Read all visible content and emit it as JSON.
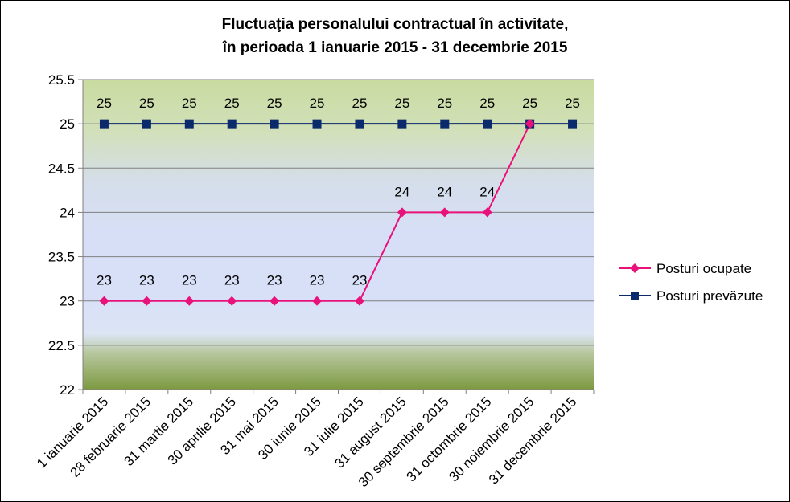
{
  "chart_data": {
    "type": "line",
    "title_lines": [
      "Fluctuaţia personalului contractual în activitate,",
      "în perioada 1 ianuarie 2015 - 31 decembrie 2015"
    ],
    "categories": [
      "1 ianuarie 2015",
      "28 februarie 2015",
      "31 martie 2015",
      "30 aprilie 2015",
      "31 mai 2015",
      "30 iunie 2015",
      "31 iulie 2015",
      "31 august 2015",
      "30 septembrie 2015",
      "31 octombrie 2015",
      "30 noiembrie 2015",
      "31 decembrie 2015"
    ],
    "ylim": [
      22,
      25.5
    ],
    "yticks": [
      "22",
      "22.5",
      "23",
      "23.5",
      "24",
      "24.5",
      "25",
      "25.5"
    ],
    "series": [
      {
        "name": "Posturi ocupate",
        "color": "#e8127a",
        "marker": "diamond",
        "values": [
          23,
          23,
          23,
          23,
          23,
          23,
          23,
          24,
          24,
          24,
          25,
          null
        ],
        "labels": [
          "23",
          "23",
          "23",
          "23",
          "23",
          "23",
          "23",
          "24",
          "24",
          "24",
          "",
          ""
        ]
      },
      {
        "name": "Posturi prevăzute",
        "color": "#0a2a6b",
        "marker": "square",
        "values": [
          25,
          25,
          25,
          25,
          25,
          25,
          25,
          25,
          25,
          25,
          25,
          25
        ],
        "labels": [
          "25",
          "25",
          "25",
          "25",
          "25",
          "25",
          "25",
          "25",
          "25",
          "25",
          "25",
          "25"
        ]
      }
    ],
    "legend_position": "right",
    "grid": true
  }
}
